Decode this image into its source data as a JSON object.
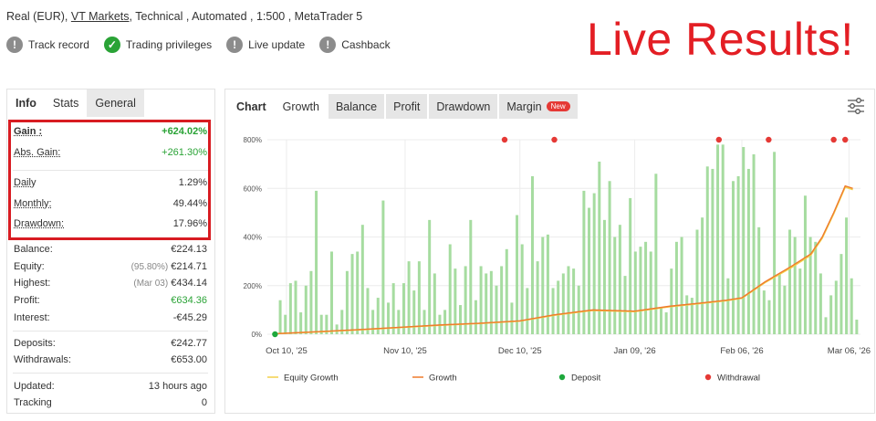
{
  "account": {
    "type": "Real (EUR),",
    "broker": "VT Markets",
    "rest": ", Technical , Automated , 1:500 , MetaTrader 5"
  },
  "badges": [
    {
      "label": "Track record",
      "icon": "info-icon",
      "color": "#8c8c8c"
    },
    {
      "label": "Trading privileges",
      "icon": "check-icon",
      "color": "#2aa336"
    },
    {
      "label": "Live update",
      "icon": "info-icon",
      "color": "#8c8c8c"
    },
    {
      "label": "Cashback",
      "icon": "info-icon",
      "color": "#8c8c8c"
    }
  ],
  "banner": "Live Results!",
  "left_tabs": {
    "info": "Info",
    "stats": "Stats",
    "general": "General"
  },
  "stats": {
    "gain": {
      "label": "Gain :",
      "value": "+624.02%"
    },
    "abs_gain": {
      "label": "Abs. Gain:",
      "value": "+261.30%"
    },
    "daily": {
      "label": "Daily",
      "value": "1.29%"
    },
    "monthly": {
      "label": "Monthly:",
      "value": "49.44%"
    },
    "drawdown": {
      "label": "Drawdown:",
      "value": "17.96%"
    },
    "balance": {
      "label": "Balance:",
      "value": "€224.13"
    },
    "equity": {
      "label": "Equity:",
      "sub": "(95.80%)",
      "value": "€214.71"
    },
    "highest": {
      "label": "Highest:",
      "sub": "(Mar 03)",
      "value": "€434.14"
    },
    "profit": {
      "label": "Profit:",
      "value": "€634.36"
    },
    "interest": {
      "label": "Interest:",
      "value": "-€45.29"
    },
    "deposits": {
      "label": "Deposits:",
      "value": "€242.77"
    },
    "withdrawals": {
      "label": "Withdrawals:",
      "value": "€653.00"
    },
    "updated": {
      "label": "Updated:",
      "value": "13 hours ago"
    },
    "tracking": {
      "label": "Tracking",
      "value": "0"
    }
  },
  "chart_tabs": {
    "label": "Chart",
    "growth": "Growth",
    "balance": "Balance",
    "profit": "Profit",
    "drawdown": "Drawdown",
    "margin": "Margin",
    "new_badge": "New"
  },
  "chart_data": {
    "type": "line",
    "y_ticks": [
      "0%",
      "200%",
      "400%",
      "600%",
      "800%"
    ],
    "ylim": [
      0,
      800
    ],
    "x_ticks": [
      "Oct 10, '25",
      "Nov 10, '25",
      "Dec 10, '25",
      "Jan 09, '26",
      "Feb 06, '26",
      "Mar 06, '26"
    ],
    "x_tick_pos": [
      0,
      31,
      61,
      91,
      119,
      147
    ],
    "xlim": [
      -5,
      150
    ],
    "grid": true,
    "legend": [
      "Equity Growth",
      "Growth",
      "Deposit",
      "Withdrawal"
    ],
    "legend_colors": [
      "#f2d04b",
      "#ef7a2c",
      "#1ea83c",
      "#e53935"
    ],
    "bar_color": "#a6dca0",
    "growth_series": {
      "x": [
        -3,
        10,
        20,
        31,
        40,
        50,
        61,
        70,
        80,
        91,
        100,
        108,
        115,
        119,
        125,
        132,
        137,
        140,
        143,
        146,
        148
      ],
      "y": [
        2,
        12,
        20,
        30,
        38,
        45,
        55,
        80,
        100,
        95,
        115,
        128,
        140,
        150,
        215,
        280,
        330,
        400,
        500,
        610,
        600
      ]
    },
    "equity_series": {
      "x": [
        -3,
        10,
        20,
        31,
        40,
        50,
        61,
        70,
        80,
        91,
        100,
        108,
        115,
        119,
        125,
        132,
        137,
        140,
        143,
        146,
        148
      ],
      "y": [
        2,
        11,
        19,
        29,
        37,
        44,
        54,
        78,
        98,
        93,
        113,
        126,
        138,
        148,
        212,
        275,
        325,
        395,
        495,
        605,
        595
      ]
    },
    "bars": [
      140,
      80,
      210,
      220,
      90,
      200,
      260,
      590,
      80,
      80,
      340,
      40,
      100,
      260,
      330,
      340,
      450,
      190,
      100,
      150,
      550,
      130,
      210,
      100,
      210,
      300,
      180,
      300,
      100,
      470,
      250,
      80,
      100,
      370,
      270,
      120,
      280,
      470,
      140,
      280,
      250,
      260,
      200,
      280,
      350,
      130,
      490,
      370,
      190,
      650,
      300,
      400,
      410,
      190,
      220,
      250,
      280,
      270,
      200,
      590,
      520,
      580,
      710,
      470,
      630,
      400,
      450,
      240,
      560,
      340,
      360,
      380,
      340,
      660,
      110,
      90,
      270,
      380,
      400,
      160,
      150,
      430,
      480,
      690,
      680,
      780,
      780,
      230,
      630,
      650,
      770,
      680,
      740,
      440,
      180,
      140,
      750,
      250,
      200,
      430,
      400,
      270,
      570,
      400,
      380,
      250,
      70,
      160,
      220,
      330,
      480,
      230,
      60
    ],
    "deposits": [
      {
        "x": -3,
        "y": 0
      }
    ],
    "withdrawals": [
      {
        "x": 57,
        "y": 800
      },
      {
        "x": 70,
        "y": 800
      },
      {
        "x": 113,
        "y": 800
      },
      {
        "x": 126,
        "y": 800
      },
      {
        "x": 143,
        "y": 800
      },
      {
        "x": 146,
        "y": 800
      }
    ]
  }
}
